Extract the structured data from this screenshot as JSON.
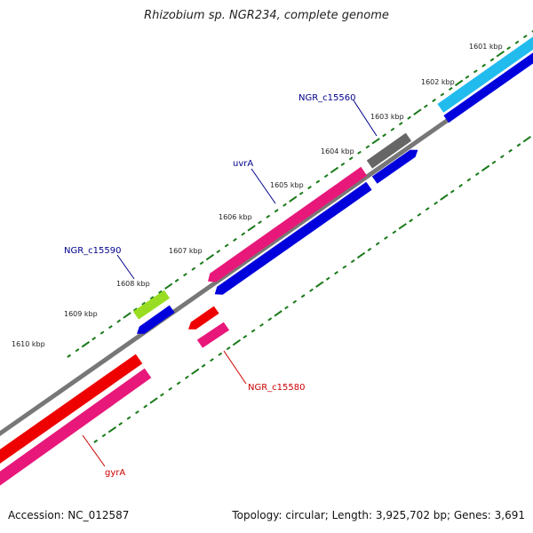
{
  "title": "Rhizobium sp. NGR234, complete genome",
  "footer": {
    "accession": "Accession: NC_012587",
    "summary": "Topology: circular; Length: 3,925,702 bp; Genes: 3,691"
  },
  "colors": {
    "forward_label": "#00008b",
    "reverse_label": "#cc0000",
    "backbone": "#777777",
    "tick": "#1a7a1a",
    "cds": "#0000dd"
  },
  "tick_labels": [
    "1601 kbp",
    "1602 kbp",
    "1603 kbp",
    "1604 kbp",
    "1605 kbp",
    "1606 kbp",
    "1607 kbp",
    "1608 kbp",
    "1609 kbp",
    "1610 kbp"
  ],
  "genes": [
    {
      "name": "NGR_c15560",
      "strand": "forward",
      "color": "#666666"
    },
    {
      "name": "uvrA",
      "strand": "forward",
      "color": "#e8187a"
    },
    {
      "name": "NGR_c15590",
      "strand": "forward",
      "color": "#99dd22"
    },
    {
      "name": "NGR_c15580",
      "strand": "reverse",
      "color": "#ee0000"
    },
    {
      "name": "gyrA",
      "strand": "reverse",
      "color": "#ee0000"
    },
    {
      "name": "",
      "strand": "forward",
      "color": "#22bbee"
    }
  ]
}
